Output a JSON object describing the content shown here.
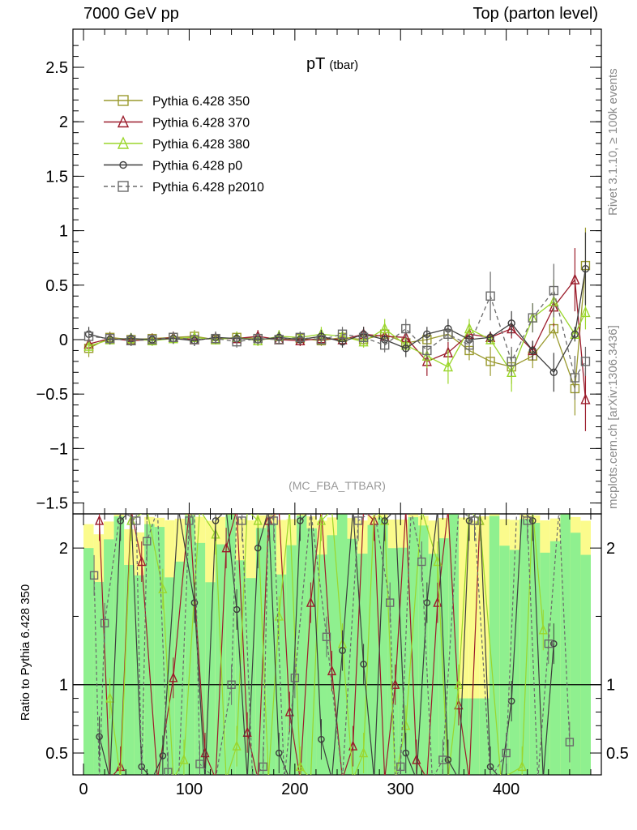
{
  "header": {
    "left": "7000 GeV pp",
    "right": "Top (parton level)"
  },
  "side_labels": {
    "rivet": "Rivet 3.1.10, ≥ 100k events",
    "mcplots": "mcplots.cern.ch [arXiv:1306.3436]"
  },
  "chart_data": [
    {
      "type": "line",
      "title": "pT",
      "title_sub": "(tbar)",
      "watermark": "(MC_FBA_TTBAR)",
      "xlim": [
        -10,
        490
      ],
      "ylim": [
        -1.6,
        2.85
      ],
      "yticks": [
        -1.5,
        -1,
        -0.5,
        0,
        0.5,
        1,
        1.5,
        2,
        2.5
      ],
      "ytick_labels": [
        "−1.5",
        "−1",
        "−0.5",
        "0",
        "0.5",
        "1",
        "1.5",
        "2",
        "2.5"
      ],
      "legend": "top-left",
      "series": [
        {
          "name": "Pythia 6.428 350",
          "color": "#9a9a2e",
          "marker": "square",
          "x": [
            5,
            25,
            45,
            65,
            85,
            105,
            125,
            145,
            165,
            185,
            205,
            225,
            245,
            265,
            285,
            305,
            325,
            345,
            365,
            385,
            405,
            425,
            445,
            465,
            475
          ],
          "y": [
            -0.08,
            0.02,
            0.0,
            0.01,
            0.02,
            0.03,
            0.0,
            0.02,
            0.01,
            0.0,
            0.01,
            -0.01,
            0.02,
            0.0,
            0.05,
            -0.03,
            0.0,
            0.05,
            -0.1,
            -0.2,
            -0.25,
            -0.15,
            0.1,
            -0.45,
            0.68
          ]
        },
        {
          "name": "Pythia 6.428 370",
          "color": "#9b1c2b",
          "marker": "triangle",
          "x": [
            5,
            25,
            45,
            65,
            85,
            105,
            125,
            145,
            165,
            185,
            205,
            225,
            245,
            265,
            285,
            305,
            325,
            345,
            365,
            385,
            405,
            425,
            445,
            465,
            475
          ],
          "y": [
            -0.04,
            0.01,
            -0.01,
            0.0,
            0.02,
            0.0,
            0.01,
            0.01,
            0.03,
            0.0,
            -0.01,
            0.01,
            0.0,
            0.05,
            0.03,
            0.02,
            -0.2,
            -0.12,
            0.05,
            0.02,
            0.1,
            -0.1,
            0.3,
            0.55,
            -0.55
          ]
        },
        {
          "name": "Pythia 6.428 380",
          "color": "#9bd62c",
          "marker": "triangle",
          "x": [
            5,
            25,
            45,
            65,
            85,
            105,
            125,
            145,
            165,
            185,
            205,
            225,
            245,
            265,
            285,
            305,
            325,
            345,
            365,
            385,
            405,
            425,
            445,
            465,
            475
          ],
          "y": [
            -0.06,
            0.0,
            0.01,
            -0.01,
            0.01,
            0.02,
            0.0,
            0.02,
            -0.01,
            0.03,
            0.02,
            0.05,
            0.03,
            -0.02,
            0.1,
            -0.05,
            -0.15,
            -0.25,
            0.1,
            0.0,
            -0.3,
            0.2,
            0.35,
            0.05,
            0.25
          ]
        },
        {
          "name": "Pythia 6.428 p0",
          "color": "#3d3d3d",
          "marker": "circle",
          "x": [
            5,
            25,
            45,
            65,
            85,
            105,
            125,
            145,
            165,
            185,
            205,
            225,
            245,
            265,
            285,
            305,
            325,
            345,
            365,
            385,
            405,
            425,
            445,
            465,
            475
          ],
          "y": [
            0.05,
            0.0,
            0.01,
            0.0,
            0.01,
            -0.01,
            0.02,
            0.01,
            0.0,
            0.02,
            0.0,
            0.03,
            -0.02,
            0.05,
            0.0,
            -0.08,
            0.05,
            0.1,
            0.0,
            0.02,
            0.15,
            -0.1,
            -0.3,
            0.05,
            0.65
          ]
        },
        {
          "name": "Pythia 6.428 p2010",
          "color": "#6a6a6a",
          "marker": "square",
          "dashed": true,
          "x": [
            5,
            25,
            45,
            65,
            85,
            105,
            125,
            145,
            165,
            185,
            205,
            225,
            245,
            265,
            285,
            305,
            325,
            345,
            365,
            385,
            405,
            425,
            445,
            465,
            475
          ],
          "y": [
            0.03,
            0.01,
            -0.01,
            0.0,
            0.02,
            0.0,
            0.01,
            -0.02,
            0.01,
            0.0,
            0.02,
            0.0,
            0.05,
            0.02,
            -0.05,
            0.1,
            -0.1,
            0.05,
            -0.05,
            0.4,
            -0.2,
            0.2,
            0.45,
            -0.35,
            -0.2
          ]
        }
      ]
    },
    {
      "type": "line",
      "ylabel": "Ratio to Pythia 6.428 350",
      "xlim": [
        -10,
        490
      ],
      "ylim": [
        0.34,
        2.25
      ],
      "yticks": [
        0.5,
        1,
        2
      ],
      "ytick_labels": [
        "0.5",
        "1",
        "2"
      ],
      "xticks": [
        0,
        100,
        200,
        300,
        400
      ],
      "xtick_labels": [
        "0",
        "100",
        "200",
        "300",
        "400"
      ],
      "reference_line": 1,
      "series": [
        {
          "name": "Pythia 6.428 370",
          "color": "#9b1c2b",
          "marker": "triangle",
          "x": [
            15,
            35,
            55,
            85,
            115,
            135,
            155,
            175,
            195,
            215,
            235,
            255,
            275,
            295,
            315,
            335,
            355,
            375
          ],
          "y": [
            2.2,
            0.4,
            1.9,
            1.05,
            0.5,
            2.0,
            0.65,
            2.2,
            0.8,
            1.6,
            1.1,
            0.55,
            2.2,
            1.0,
            0.45,
            1.6,
            0.85,
            2.2
          ]
        },
        {
          "name": "Pythia 6.428 380",
          "color": "#9bd62c",
          "marker": "triangle",
          "x": [
            25,
            45,
            75,
            95,
            125,
            145,
            165,
            185,
            205,
            225,
            245,
            265,
            285,
            305,
            335,
            355,
            375,
            415,
            435
          ],
          "y": [
            0.9,
            2.2,
            1.7,
            0.45,
            2.1,
            0.55,
            2.2,
            1.5,
            0.4,
            2.2,
            1.3,
            0.5,
            2.2,
            0.7,
            1.9,
            1.0,
            2.2,
            0.4,
            1.4
          ]
        },
        {
          "name": "Pythia 6.428 p0",
          "color": "#3d3d3d",
          "marker": "circle",
          "x": [
            15,
            35,
            55,
            75,
            105,
            125,
            145,
            165,
            185,
            205,
            225,
            245,
            265,
            285,
            305,
            325,
            345,
            365,
            385,
            405,
            425,
            445
          ],
          "y": [
            0.62,
            2.2,
            0.4,
            0.48,
            1.6,
            2.2,
            1.55,
            2.0,
            0.5,
            2.2,
            0.6,
            1.25,
            1.15,
            2.2,
            0.5,
            1.6,
            0.45,
            2.2,
            0.4,
            0.88,
            2.2,
            1.3
          ]
        },
        {
          "name": "Pythia 6.428 p2010",
          "color": "#6a6a6a",
          "marker": "square",
          "dashed": true,
          "x": [
            10,
            20,
            50,
            60,
            80,
            100,
            110,
            140,
            150,
            170,
            180,
            200,
            230,
            260,
            290,
            300,
            320,
            340,
            370,
            400,
            420,
            440,
            460
          ],
          "y": [
            1.8,
            1.45,
            2.2,
            2.05,
            0.36,
            2.2,
            0.42,
            1.0,
            2.2,
            0.4,
            2.2,
            1.05,
            1.35,
            2.2,
            1.6,
            0.4,
            1.9,
            0.45,
            2.2,
            0.5,
            2.2,
            1.3,
            0.58
          ]
        }
      ]
    }
  ]
}
